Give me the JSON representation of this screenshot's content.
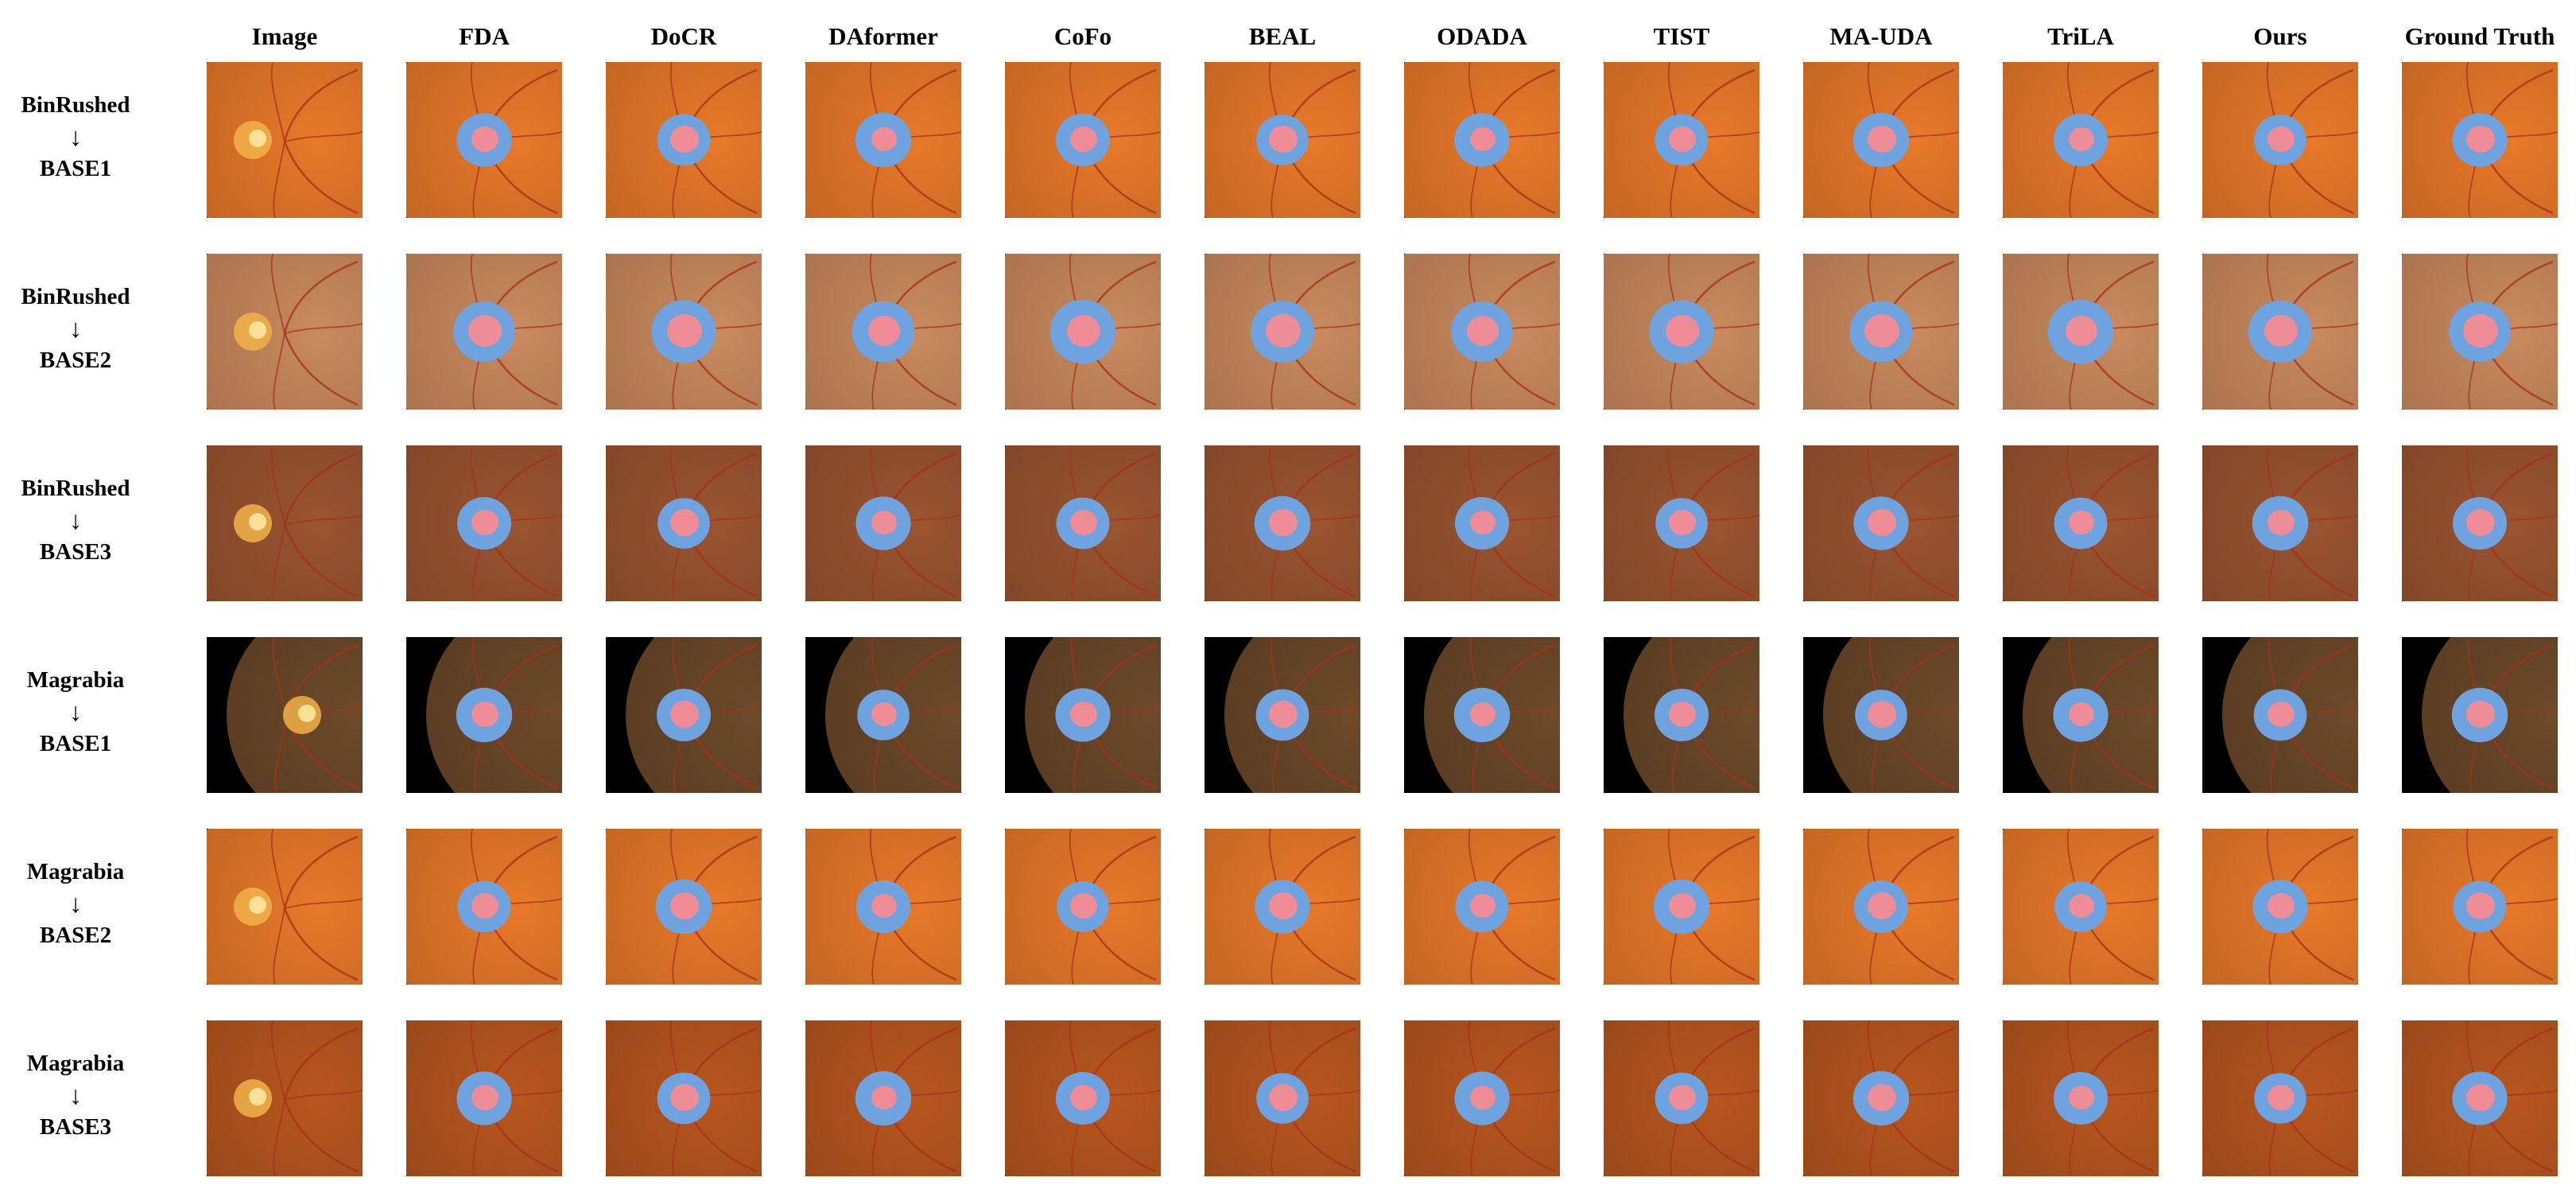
{
  "columns": [
    "Image",
    "FDA",
    "DoCR",
    "DAformer",
    "CoFo",
    "BEAL",
    "ODADA",
    "TIST",
    "MA-UDA",
    "TriLA",
    "Ours",
    "Ground Truth"
  ],
  "rows": [
    {
      "source": "BinRushed",
      "arrow": "↓",
      "target": "BASE1",
      "tone": "orange",
      "disc_side": "right"
    },
    {
      "source": "BinRushed",
      "arrow": "↓",
      "target": "BASE2",
      "tone": "pale",
      "disc_side": "right"
    },
    {
      "source": "BinRushed",
      "arrow": "↓",
      "target": "BASE3",
      "tone": "brown",
      "disc_side": "right"
    },
    {
      "source": "Magrabia",
      "arrow": "↓",
      "target": "BASE1",
      "tone": "dark",
      "disc_side": "left"
    },
    {
      "source": "Magrabia",
      "arrow": "↓",
      "target": "BASE2",
      "tone": "orange",
      "disc_side": "right"
    },
    {
      "source": "Magrabia",
      "arrow": "↓",
      "target": "BASE3",
      "tone": "deep",
      "disc_side": "right"
    }
  ],
  "colors": {
    "optic_disc": "#6fa3e0",
    "optic_cup": "#ee8c98",
    "background": "#000000",
    "fundus_orange": "#e8792a",
    "fundus_pale": "#c98a5e",
    "fundus_brown": "#9a5430",
    "fundus_dark": "#6e4a2a",
    "fundus_deep": "#b8561f",
    "vessel": "#a8301c"
  }
}
